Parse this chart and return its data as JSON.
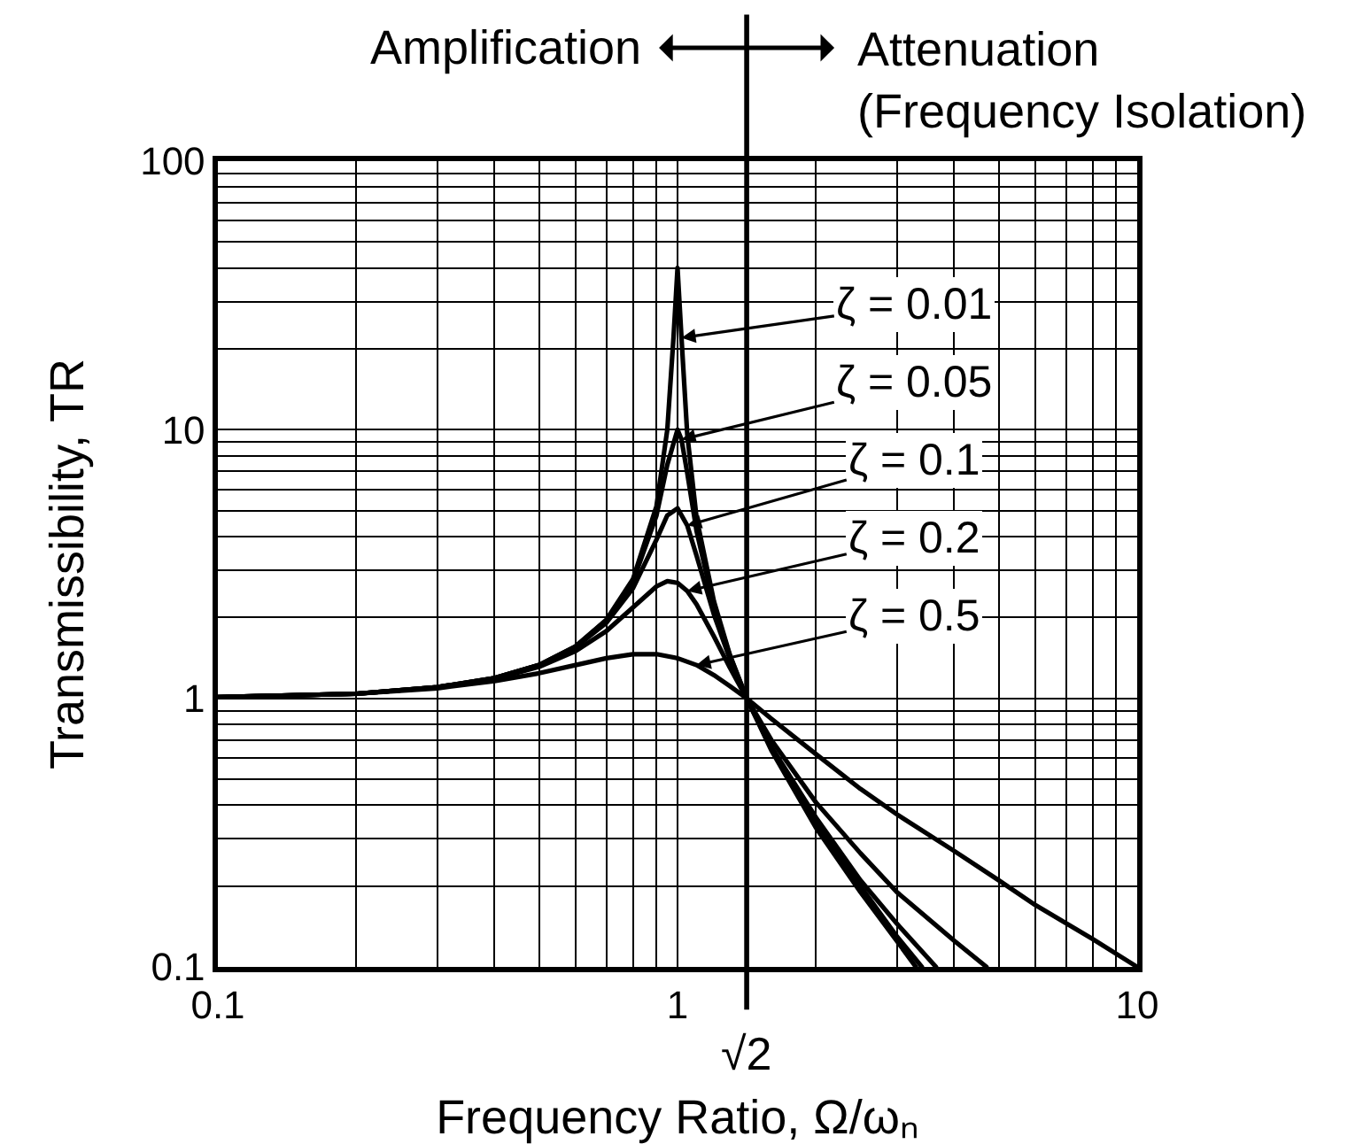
{
  "chart_data": {
    "type": "line",
    "xlabel": "Frequency Ratio, Ω/ωₙ",
    "ylabel": "Transmissibility, TR",
    "log": "xy",
    "grid": true,
    "xlim": [
      0.1,
      10
    ],
    "ylim": [
      0.1,
      100
    ],
    "xticks": [
      0.1,
      {
        "value": 0.2,
        "label": null
      },
      {
        "value": 0.3,
        "label": null
      },
      {
        "value": 0.4,
        "label": null
      },
      {
        "value": 0.5,
        "label": null
      },
      {
        "value": 0.6,
        "label": null
      },
      {
        "value": 0.7,
        "label": null
      },
      {
        "value": 0.8,
        "label": null
      },
      {
        "value": 0.9,
        "label": null
      },
      1,
      {
        "value": 2,
        "label": null
      },
      {
        "value": 3,
        "label": null
      },
      {
        "value": 4,
        "label": null
      },
      {
        "value": 5,
        "label": null
      },
      {
        "value": 6,
        "label": null
      },
      {
        "value": 7,
        "label": null
      },
      {
        "value": 8,
        "label": null
      },
      {
        "value": 9,
        "label": null
      },
      10
    ],
    "yticks": [
      0.1,
      {
        "value": 0.2,
        "label": null
      },
      {
        "value": 0.3,
        "label": null
      },
      {
        "value": 0.4,
        "label": null
      },
      {
        "value": 0.5,
        "label": null
      },
      {
        "value": 0.6,
        "label": null
      },
      {
        "value": 0.7,
        "label": null
      },
      {
        "value": 0.8,
        "label": null
      },
      {
        "value": 0.9,
        "label": null
      },
      1,
      {
        "value": 2,
        "label": null
      },
      {
        "value": 3,
        "label": null
      },
      {
        "value": 4,
        "label": null
      },
      {
        "value": 5,
        "label": null
      },
      {
        "value": 6,
        "label": null
      },
      {
        "value": 7,
        "label": null
      },
      {
        "value": 8,
        "label": null
      },
      {
        "value": 9,
        "label": null
      },
      10,
      {
        "value": 20,
        "label": null
      },
      {
        "value": 30,
        "label": null
      },
      {
        "value": 40,
        "label": null
      },
      {
        "value": 50,
        "label": null
      },
      {
        "value": 60,
        "label": null
      },
      {
        "value": 70,
        "label": null
      },
      {
        "value": 80,
        "label": null
      },
      {
        "value": 90,
        "label": null
      },
      100
    ],
    "series": [
      {
        "color": "#000000",
        "x": [
          0.1,
          0.2,
          0.3,
          0.4,
          0.5,
          0.6,
          0.7,
          0.8,
          0.9,
          0.95,
          0.98,
          1,
          1.02,
          1.05,
          1.1,
          1.2,
          1.3,
          1.414,
          1.6,
          2,
          2.5,
          3,
          3.3
        ],
        "values": [
          1.01,
          1.04,
          1.1,
          1.19,
          1.33,
          1.56,
          1.96,
          2.78,
          5.2,
          10,
          22,
          40,
          22,
          9.6,
          4.7,
          2.3,
          1.45,
          1,
          0.64,
          0.33,
          0.19,
          0.125,
          0.1
        ]
      },
      {
        "color": "#000000",
        "x": [
          0.1,
          0.2,
          0.3,
          0.4,
          0.5,
          0.6,
          0.7,
          0.8,
          0.9,
          0.95,
          1,
          1.02,
          1.05,
          1.1,
          1.2,
          1.3,
          1.414,
          1.6,
          2,
          2.5,
          3,
          3.4
        ],
        "values": [
          1.01,
          1.04,
          1.1,
          1.19,
          1.33,
          1.56,
          1.95,
          2.72,
          4.8,
          7.4,
          10,
          9.2,
          6.9,
          4.2,
          2.2,
          1.44,
          1,
          0.65,
          0.34,
          0.2,
          0.13,
          0.1
        ]
      },
      {
        "color": "#000000",
        "x": [
          0.1,
          0.2,
          0.3,
          0.4,
          0.5,
          0.6,
          0.7,
          0.8,
          0.9,
          0.95,
          1,
          1.05,
          1.1,
          1.2,
          1.3,
          1.414,
          1.6,
          2,
          2.5,
          3,
          3.65
        ],
        "values": [
          1.01,
          1.04,
          1.1,
          1.19,
          1.33,
          1.55,
          1.91,
          2.57,
          3.9,
          4.8,
          5.1,
          4.4,
          3.4,
          2.05,
          1.4,
          1,
          0.66,
          0.36,
          0.21,
          0.145,
          0.1
        ]
      },
      {
        "color": "#000000",
        "x": [
          0.1,
          0.2,
          0.3,
          0.4,
          0.5,
          0.6,
          0.7,
          0.8,
          0.9,
          0.95,
          1,
          1.05,
          1.1,
          1.2,
          1.3,
          1.414,
          1.6,
          2,
          2.5,
          3,
          4,
          4.7
        ],
        "values": [
          1.01,
          1.04,
          1.1,
          1.18,
          1.31,
          1.5,
          1.78,
          2.18,
          2.61,
          2.73,
          2.69,
          2.51,
          2.24,
          1.7,
          1.3,
          1,
          0.7,
          0.41,
          0.265,
          0.19,
          0.125,
          0.1
        ]
      },
      {
        "color": "#000000",
        "x": [
          0.1,
          0.2,
          0.3,
          0.4,
          0.5,
          0.6,
          0.7,
          0.8,
          0.9,
          1,
          1.1,
          1.2,
          1.3,
          1.414,
          1.6,
          2,
          2.5,
          3,
          4,
          5,
          6,
          8,
          10
        ],
        "values": [
          1.01,
          1.04,
          1.09,
          1.16,
          1.24,
          1.33,
          1.41,
          1.46,
          1.46,
          1.41,
          1.33,
          1.22,
          1.11,
          1,
          0.84,
          0.62,
          0.46,
          0.37,
          0.27,
          0.21,
          0.17,
          0.127,
          0.1
        ]
      }
    ],
    "ref_lines": [
      {
        "axis": "x",
        "value": 1.414,
        "label": "√2"
      }
    ],
    "annotations": [
      "Amplification",
      "Attenuation\n(Frequency Isolation)",
      {
        "text": "ζ = 0.01",
        "x": 1.02,
        "y": 22
      },
      {
        "text": "ζ = 0.05",
        "x": 1.02,
        "y": 9.2
      },
      {
        "text": "ζ = 0.1",
        "x": 1.05,
        "y": 4.4
      },
      {
        "text": "ζ = 0.2",
        "x": 1.05,
        "y": 2.51
      },
      {
        "text": "ζ = 0.5",
        "x": 1.1,
        "y": 1.33
      }
    ]
  }
}
